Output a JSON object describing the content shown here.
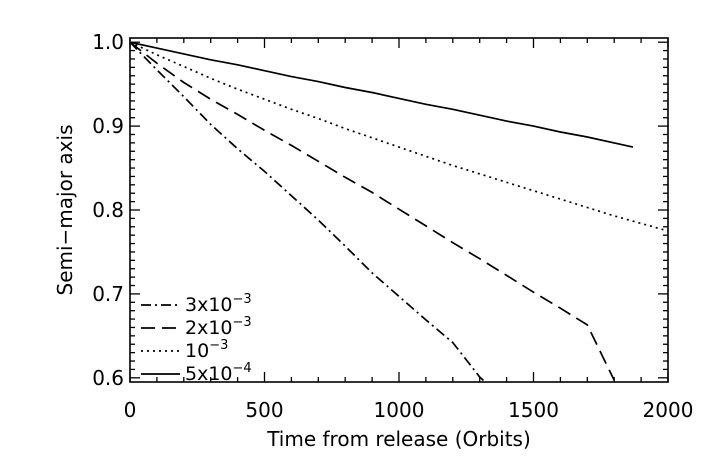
{
  "chart_data": {
    "type": "line",
    "xlabel": "Time from release (Orbits)",
    "ylabel": "Semi−major axis",
    "xlim": [
      0,
      2000
    ],
    "ylim": [
      0.595,
      1.005
    ],
    "x_ticks": [
      "0",
      "500",
      "1000",
      "1500",
      "2000"
    ],
    "y_ticks": [
      "1.0",
      "0.9",
      "0.8",
      "0.7",
      "0.6"
    ],
    "legend_position": "bottom-left",
    "series": [
      {
        "name": "3x10^-3",
        "label_base": "3x10",
        "label_exp": "−3",
        "dash": "dash-dot",
        "x": [
          0,
          100,
          200,
          300,
          400,
          500,
          600,
          700,
          800,
          900,
          1000,
          1100,
          1200,
          1300,
          1320
        ],
        "y": [
          1.0,
          0.967,
          0.935,
          0.902,
          0.873,
          0.846,
          0.817,
          0.788,
          0.757,
          0.725,
          0.697,
          0.669,
          0.642,
          0.601,
          0.595
        ]
      },
      {
        "name": "2x10^-3",
        "label_base": "2x10",
        "label_exp": "−3",
        "dash": "dash",
        "x": [
          0,
          100,
          200,
          300,
          400,
          500,
          600,
          700,
          800,
          900,
          1000,
          1100,
          1200,
          1300,
          1400,
          1500,
          1600,
          1700,
          1800
        ],
        "y": [
          1.0,
          0.975,
          0.952,
          0.932,
          0.914,
          0.895,
          0.877,
          0.858,
          0.839,
          0.821,
          0.801,
          0.781,
          0.761,
          0.742,
          0.722,
          0.702,
          0.683,
          0.663,
          0.597
        ]
      },
      {
        "name": "10^-3",
        "label_base": "10",
        "label_exp": "−3",
        "dash": "dot",
        "x": [
          0,
          100,
          200,
          300,
          400,
          500,
          600,
          700,
          800,
          900,
          1000,
          1100,
          1200,
          1300,
          1400,
          1500,
          1600,
          1700,
          1800,
          1900,
          2000
        ],
        "y": [
          1.0,
          0.985,
          0.971,
          0.957,
          0.944,
          0.932,
          0.92,
          0.909,
          0.897,
          0.886,
          0.875,
          0.864,
          0.853,
          0.843,
          0.833,
          0.823,
          0.813,
          0.803,
          0.793,
          0.784,
          0.775
        ]
      },
      {
        "name": "5x10^-4",
        "label_base": "5x10",
        "label_exp": "−4",
        "dash": "solid",
        "x": [
          0,
          100,
          200,
          300,
          400,
          500,
          600,
          700,
          800,
          900,
          1000,
          1100,
          1200,
          1300,
          1400,
          1500,
          1600,
          1700,
          1800,
          1870
        ],
        "y": [
          1.0,
          0.993,
          0.986,
          0.979,
          0.973,
          0.966,
          0.959,
          0.953,
          0.946,
          0.94,
          0.933,
          0.926,
          0.92,
          0.913,
          0.906,
          0.9,
          0.893,
          0.887,
          0.88,
          0.875
        ]
      }
    ]
  }
}
